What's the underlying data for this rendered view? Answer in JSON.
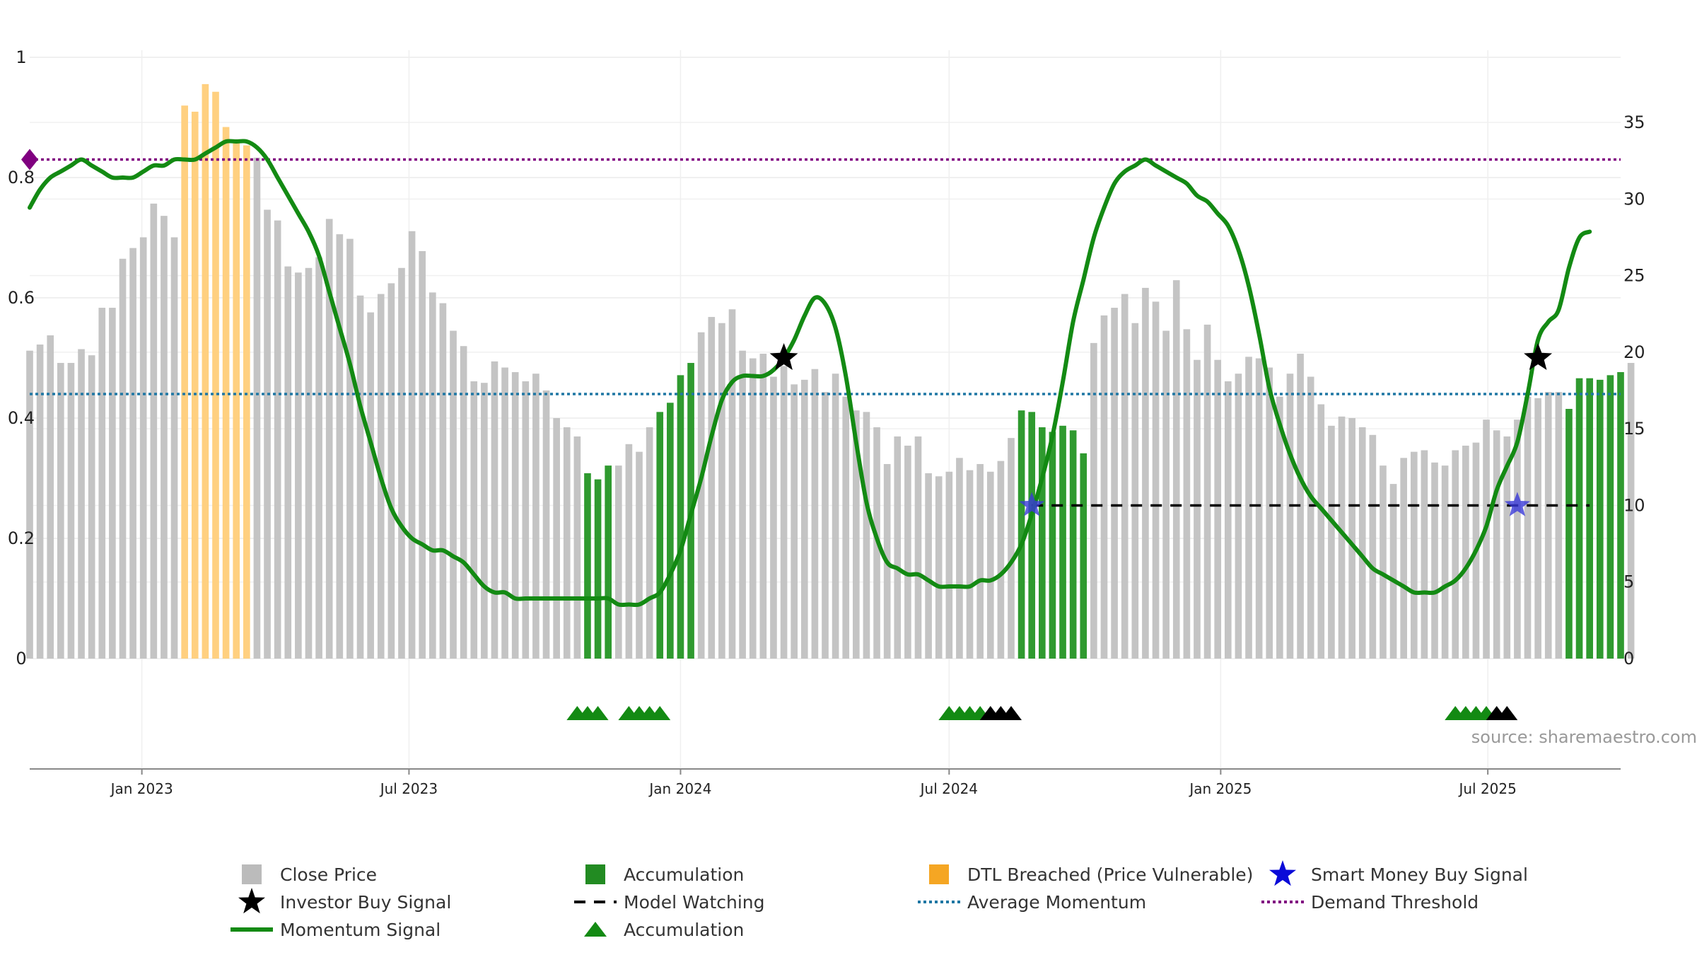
{
  "chart_data": {
    "type": "bar",
    "title": "",
    "left_axis": {
      "ylim": [
        0,
        1
      ],
      "ticks": [
        0,
        0.2,
        0.4,
        0.6,
        0.8,
        1
      ],
      "tick_labels": [
        "0",
        "0.2",
        "0.4",
        "0.6",
        "0.8",
        "1"
      ]
    },
    "right_axis": {
      "ylim": [
        0,
        39.25
      ],
      "ticks": [
        0,
        5,
        10,
        15,
        20,
        25,
        30,
        35
      ],
      "tick_labels": [
        "0",
        "5",
        "10",
        "15",
        "20",
        "25",
        "30",
        "35"
      ]
    },
    "x_range": [
      "2022-10-17",
      "2025-09-29"
    ],
    "x_ticks": [
      {
        "date": "2023-01-01",
        "label": "Jan 2023"
      },
      {
        "date": "2023-07-01",
        "label": "Jul 2023"
      },
      {
        "date": "2024-01-01",
        "label": "Jan 2024"
      },
      {
        "date": "2024-07-01",
        "label": "Jul 2024"
      },
      {
        "date": "2025-01-01",
        "label": "Jan 2025"
      },
      {
        "date": "2025-07-01",
        "label": "Jul 2025"
      }
    ],
    "bars_start_date": "2022-10-17",
    "bar_interval_days": 7,
    "bar_values": [
      20.1,
      20.5,
      21.1,
      19.3,
      19.3,
      20.2,
      19.8,
      22.9,
      22.9,
      26.1,
      26.8,
      27.5,
      29.7,
      28.9,
      27.5,
      36.1,
      35.7,
      37.5,
      37.0,
      34.7,
      33.9,
      33.5,
      32.7,
      29.3,
      28.6,
      25.6,
      25.2,
      25.5,
      26.2,
      28.7,
      27.7,
      27.4,
      23.7,
      22.6,
      23.8,
      24.5,
      25.5,
      27.9,
      26.6,
      23.9,
      23.2,
      21.4,
      20.4,
      18.1,
      18.0,
      19.4,
      19.0,
      18.7,
      18.1,
      18.6,
      17.5,
      15.7,
      15.1,
      14.5,
      12.1,
      11.7,
      12.6,
      12.6,
      14.0,
      13.5,
      15.1,
      16.1,
      16.7,
      18.5,
      19.3,
      21.3,
      22.3,
      21.9,
      22.8,
      20.1,
      19.6,
      19.9,
      18.4,
      19.1,
      17.9,
      18.2,
      18.9,
      17.4,
      18.6,
      17.1,
      16.2,
      16.1,
      15.1,
      12.7,
      14.5,
      13.9,
      14.5,
      12.1,
      11.9,
      12.2,
      13.1,
      12.3,
      12.7,
      12.2,
      12.9,
      14.4,
      16.2,
      16.1,
      15.1,
      14.8,
      15.2,
      14.9,
      13.4,
      20.6,
      22.4,
      22.9,
      23.8,
      21.9,
      24.2,
      23.3,
      21.4,
      24.7,
      21.5,
      19.5,
      21.8,
      19.5,
      18.1,
      18.6,
      19.7,
      19.6,
      19.0,
      17.1,
      18.6,
      19.9,
      18.4,
      16.6,
      15.2,
      15.8,
      15.7,
      15.1,
      14.6,
      12.6,
      11.4,
      13.1,
      13.5,
      13.6,
      12.8,
      12.6,
      13.6,
      13.9,
      14.1,
      15.6,
      14.9,
      14.5,
      15.6,
      17.1,
      17.0,
      17.4,
      17.4,
      16.3,
      18.3,
      18.3,
      18.2,
      18.5,
      18.7,
      19.3
    ],
    "bar_categories": [
      "gray",
      "gray",
      "gray",
      "gray",
      "gray",
      "gray",
      "gray",
      "gray",
      "gray",
      "gray",
      "gray",
      "gray",
      "gray",
      "gray",
      "gray",
      "dtl",
      "dtl",
      "dtl",
      "dtl",
      "dtl",
      "dtl",
      "dtl",
      "gray",
      "gray",
      "gray",
      "gray",
      "gray",
      "gray",
      "gray",
      "gray",
      "gray",
      "gray",
      "gray",
      "gray",
      "gray",
      "gray",
      "gray",
      "gray",
      "gray",
      "gray",
      "gray",
      "gray",
      "gray",
      "gray",
      "gray",
      "gray",
      "gray",
      "gray",
      "gray",
      "gray",
      "gray",
      "gray",
      "gray",
      "gray",
      "acc",
      "acc",
      "acc",
      "gray",
      "gray",
      "gray",
      "gray",
      "acc",
      "acc",
      "acc",
      "acc",
      "gray",
      "gray",
      "gray",
      "gray",
      "gray",
      "gray",
      "gray",
      "gray",
      "gray",
      "gray",
      "gray",
      "gray",
      "gray",
      "gray",
      "gray",
      "gray",
      "gray",
      "gray",
      "gray",
      "gray",
      "gray",
      "gray",
      "gray",
      "gray",
      "gray",
      "gray",
      "gray",
      "gray",
      "gray",
      "gray",
      "gray",
      "acc",
      "acc",
      "acc",
      "acc",
      "acc",
      "acc",
      "acc",
      "gray",
      "gray",
      "gray",
      "gray",
      "gray",
      "gray",
      "gray",
      "gray",
      "gray",
      "gray",
      "gray",
      "gray",
      "gray",
      "gray",
      "gray",
      "gray",
      "gray",
      "gray",
      "gray",
      "gray",
      "gray",
      "gray",
      "gray",
      "gray",
      "gray",
      "gray",
      "gray",
      "gray",
      "gray",
      "gray",
      "gray",
      "gray",
      "gray",
      "gray",
      "gray",
      "gray",
      "gray",
      "gray",
      "gray",
      "gray",
      "gray",
      "gray",
      "gray",
      "gray",
      "gray",
      "gray",
      "acc",
      "acc",
      "acc",
      "acc",
      "acc",
      "acc",
      "gray",
      "gray",
      "gray",
      "gray",
      "gray",
      "gray",
      "gray",
      "gray",
      "gray",
      "gray",
      "gray",
      "gray"
    ],
    "momentum_signal": [
      [
        "2022-10-17",
        0.75
      ],
      [
        "2022-10-24",
        0.78
      ],
      [
        "2022-10-31",
        0.8
      ],
      [
        "2022-11-07",
        0.81
      ],
      [
        "2022-11-14",
        0.82
      ],
      [
        "2022-11-21",
        0.83
      ],
      [
        "2022-11-28",
        0.82
      ],
      [
        "2022-12-05",
        0.81
      ],
      [
        "2022-12-12",
        0.8
      ],
      [
        "2022-12-19",
        0.8
      ],
      [
        "2022-12-26",
        0.8
      ],
      [
        "2023-01-02",
        0.81
      ],
      [
        "2023-01-09",
        0.82
      ],
      [
        "2023-01-16",
        0.82
      ],
      [
        "2023-01-23",
        0.83
      ],
      [
        "2023-01-30",
        0.83
      ],
      [
        "2023-02-06",
        0.83
      ],
      [
        "2023-02-13",
        0.84
      ],
      [
        "2023-02-20",
        0.85
      ],
      [
        "2023-02-27",
        0.86
      ],
      [
        "2023-03-06",
        0.86
      ],
      [
        "2023-03-13",
        0.86
      ],
      [
        "2023-03-20",
        0.85
      ],
      [
        "2023-03-27",
        0.83
      ],
      [
        "2023-04-03",
        0.8
      ],
      [
        "2023-04-10",
        0.77
      ],
      [
        "2023-04-17",
        0.74
      ],
      [
        "2023-04-24",
        0.71
      ],
      [
        "2023-05-01",
        0.67
      ],
      [
        "2023-05-08",
        0.61
      ],
      [
        "2023-05-15",
        0.55
      ],
      [
        "2023-05-22",
        0.49
      ],
      [
        "2023-05-29",
        0.42
      ],
      [
        "2023-06-05",
        0.36
      ],
      [
        "2023-06-12",
        0.3
      ],
      [
        "2023-06-19",
        0.25
      ],
      [
        "2023-06-26",
        0.22
      ],
      [
        "2023-07-03",
        0.2
      ],
      [
        "2023-07-10",
        0.19
      ],
      [
        "2023-07-17",
        0.18
      ],
      [
        "2023-07-24",
        0.18
      ],
      [
        "2023-07-31",
        0.17
      ],
      [
        "2023-08-07",
        0.16
      ],
      [
        "2023-08-14",
        0.14
      ],
      [
        "2023-08-21",
        0.12
      ],
      [
        "2023-08-28",
        0.11
      ],
      [
        "2023-09-04",
        0.11
      ],
      [
        "2023-09-11",
        0.1
      ],
      [
        "2023-09-18",
        0.1
      ],
      [
        "2023-09-25",
        0.1
      ],
      [
        "2023-10-02",
        0.1
      ],
      [
        "2023-10-09",
        0.1
      ],
      [
        "2023-10-16",
        0.1
      ],
      [
        "2023-10-23",
        0.1
      ],
      [
        "2023-10-30",
        0.1
      ],
      [
        "2023-11-06",
        0.1
      ],
      [
        "2023-11-13",
        0.1
      ],
      [
        "2023-11-20",
        0.09
      ],
      [
        "2023-11-27",
        0.09
      ],
      [
        "2023-12-04",
        0.09
      ],
      [
        "2023-12-11",
        0.1
      ],
      [
        "2023-12-18",
        0.11
      ],
      [
        "2023-12-25",
        0.14
      ],
      [
        "2024-01-01",
        0.18
      ],
      [
        "2024-01-08",
        0.24
      ],
      [
        "2024-01-15",
        0.3
      ],
      [
        "2024-01-22",
        0.37
      ],
      [
        "2024-01-29",
        0.43
      ],
      [
        "2024-02-05",
        0.46
      ],
      [
        "2024-02-12",
        0.47
      ],
      [
        "2024-02-19",
        0.47
      ],
      [
        "2024-02-26",
        0.47
      ],
      [
        "2024-03-04",
        0.48
      ],
      [
        "2024-03-11",
        0.5
      ],
      [
        "2024-03-18",
        0.53
      ],
      [
        "2024-03-25",
        0.57
      ],
      [
        "2024-04-01",
        0.6
      ],
      [
        "2024-04-08",
        0.59
      ],
      [
        "2024-04-15",
        0.55
      ],
      [
        "2024-04-22",
        0.47
      ],
      [
        "2024-04-29",
        0.36
      ],
      [
        "2024-05-06",
        0.26
      ],
      [
        "2024-05-13",
        0.2
      ],
      [
        "2024-05-20",
        0.16
      ],
      [
        "2024-05-27",
        0.15
      ],
      [
        "2024-06-03",
        0.14
      ],
      [
        "2024-06-10",
        0.14
      ],
      [
        "2024-06-17",
        0.13
      ],
      [
        "2024-06-24",
        0.12
      ],
      [
        "2024-07-01",
        0.12
      ],
      [
        "2024-07-08",
        0.12
      ],
      [
        "2024-07-15",
        0.12
      ],
      [
        "2024-07-22",
        0.13
      ],
      [
        "2024-07-29",
        0.13
      ],
      [
        "2024-08-05",
        0.14
      ],
      [
        "2024-08-12",
        0.16
      ],
      [
        "2024-08-19",
        0.19
      ],
      [
        "2024-08-26",
        0.24
      ],
      [
        "2024-09-02",
        0.3
      ],
      [
        "2024-09-09",
        0.37
      ],
      [
        "2024-09-16",
        0.46
      ],
      [
        "2024-09-23",
        0.56
      ],
      [
        "2024-09-30",
        0.63
      ],
      [
        "2024-10-07",
        0.7
      ],
      [
        "2024-10-14",
        0.75
      ],
      [
        "2024-10-21",
        0.79
      ],
      [
        "2024-10-28",
        0.81
      ],
      [
        "2024-11-04",
        0.82
      ],
      [
        "2024-11-11",
        0.83
      ],
      [
        "2024-11-18",
        0.82
      ],
      [
        "2024-11-25",
        0.81
      ],
      [
        "2024-12-02",
        0.8
      ],
      [
        "2024-12-09",
        0.79
      ],
      [
        "2024-12-16",
        0.77
      ],
      [
        "2024-12-23",
        0.76
      ],
      [
        "2024-12-30",
        0.74
      ],
      [
        "2025-01-06",
        0.72
      ],
      [
        "2025-01-13",
        0.68
      ],
      [
        "2025-01-20",
        0.62
      ],
      [
        "2025-01-27",
        0.54
      ],
      [
        "2025-02-03",
        0.45
      ],
      [
        "2025-02-10",
        0.39
      ],
      [
        "2025-02-17",
        0.34
      ],
      [
        "2025-02-24",
        0.3
      ],
      [
        "2025-03-03",
        0.27
      ],
      [
        "2025-03-10",
        0.25
      ],
      [
        "2025-03-17",
        0.23
      ],
      [
        "2025-03-24",
        0.21
      ],
      [
        "2025-03-31",
        0.19
      ],
      [
        "2025-04-07",
        0.17
      ],
      [
        "2025-04-14",
        0.15
      ],
      [
        "2025-04-21",
        0.14
      ],
      [
        "2025-04-28",
        0.13
      ],
      [
        "2025-05-05",
        0.12
      ],
      [
        "2025-05-12",
        0.11
      ],
      [
        "2025-05-19",
        0.11
      ],
      [
        "2025-05-26",
        0.11
      ],
      [
        "2025-06-02",
        0.12
      ],
      [
        "2025-06-09",
        0.13
      ],
      [
        "2025-06-16",
        0.15
      ],
      [
        "2025-06-23",
        0.18
      ],
      [
        "2025-06-30",
        0.22
      ],
      [
        "2025-07-07",
        0.28
      ],
      [
        "2025-07-14",
        0.32
      ],
      [
        "2025-07-21",
        0.36
      ],
      [
        "2025-07-28",
        0.44
      ],
      [
        "2025-08-04",
        0.53
      ],
      [
        "2025-08-11",
        0.56
      ],
      [
        "2025-08-18",
        0.58
      ],
      [
        "2025-08-25",
        0.65
      ],
      [
        "2025-09-01",
        0.7
      ],
      [
        "2025-09-08",
        0.71
      ]
    ],
    "average_momentum": 0.44,
    "demand_threshold": 0.83,
    "model_watching": {
      "y": 10,
      "start": "2024-08-26",
      "end": "2025-09-08"
    },
    "smart_money_buy_signals": [
      {
        "date": "2024-08-26",
        "y": 10
      },
      {
        "date": "2025-07-21",
        "y": 10
      }
    ],
    "investor_buy_signals": [
      {
        "date": "2024-03-11",
        "y": 0.5
      },
      {
        "date": "2025-08-04",
        "y": 0.5
      }
    ],
    "threshold_marker": {
      "date": "2022-10-17",
      "y": 0.83
    },
    "accumulation_markers": [
      {
        "date": "2023-10-23",
        "color": "green"
      },
      {
        "date": "2023-10-30",
        "color": "green"
      },
      {
        "date": "2023-11-06",
        "color": "green"
      },
      {
        "date": "2023-11-27",
        "color": "green"
      },
      {
        "date": "2023-12-04",
        "color": "green"
      },
      {
        "date": "2023-12-11",
        "color": "green"
      },
      {
        "date": "2023-12-18",
        "color": "green"
      },
      {
        "date": "2024-07-01",
        "color": "green"
      },
      {
        "date": "2024-07-08",
        "color": "green"
      },
      {
        "date": "2024-07-15",
        "color": "green"
      },
      {
        "date": "2024-07-22",
        "color": "green"
      },
      {
        "date": "2024-07-29",
        "color": "black"
      },
      {
        "date": "2024-08-05",
        "color": "black"
      },
      {
        "date": "2024-08-12",
        "color": "black"
      },
      {
        "date": "2025-06-09",
        "color": "green"
      },
      {
        "date": "2025-06-16",
        "color": "green"
      },
      {
        "date": "2025-06-23",
        "color": "green"
      },
      {
        "date": "2025-06-30",
        "color": "green"
      },
      {
        "date": "2025-07-07",
        "color": "black"
      },
      {
        "date": "2025-07-14",
        "color": "black"
      }
    ],
    "legend": [
      {
        "label": "Close Price",
        "symbol": "square",
        "color": "#bbbbbb"
      },
      {
        "label": "Accumulation",
        "symbol": "square",
        "color": "#228b22"
      },
      {
        "label": "DTL Breached (Price Vulnerable)",
        "symbol": "square",
        "color": "#f5a623"
      },
      {
        "label": "Smart Money Buy Signal",
        "symbol": "star",
        "color": "#0a0ad8"
      },
      {
        "label": "Investor Buy Signal",
        "symbol": "star",
        "color": "#000000"
      },
      {
        "label": "Model Watching",
        "symbol": "dash",
        "color": "#000000"
      },
      {
        "label": "Average Momentum",
        "symbol": "dotted",
        "color": "#1f77a4"
      },
      {
        "label": "Demand Threshold",
        "symbol": "dotted",
        "color": "#800080"
      },
      {
        "label": "Momentum Signal",
        "symbol": "line",
        "color": "#138a13"
      },
      {
        "label": "Accumulation",
        "symbol": "triangle",
        "color": "#138a13"
      }
    ],
    "legend_placement": "bottom",
    "grid": true
  },
  "source": "source: sharemaestro.com",
  "colors": {
    "close_price": "#c4c4c4",
    "accumulation": "#2f9a2f",
    "dtl": "#ffd080",
    "momentum": "#138a13",
    "average_momentum": "#1f77a4",
    "demand_threshold": "#800080",
    "smart_money": "#3a3ad8",
    "investor": "#000000"
  }
}
